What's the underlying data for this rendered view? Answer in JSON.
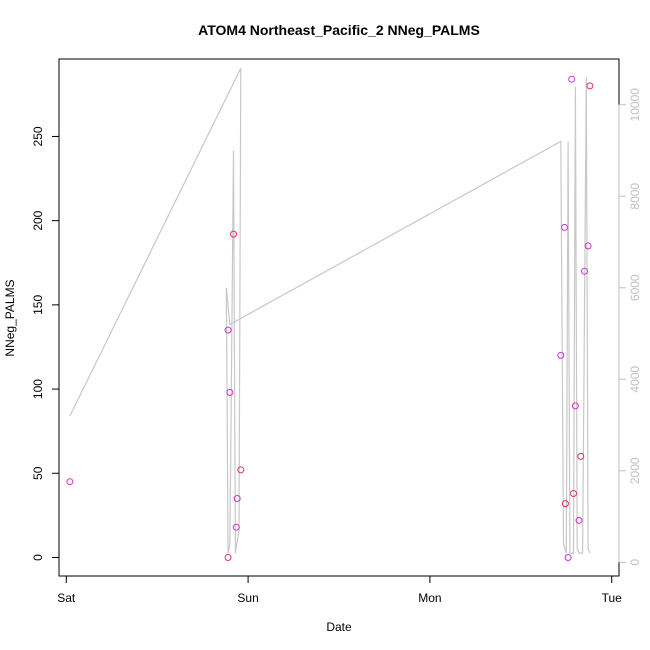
{
  "chart_data": {
    "type": "scatter",
    "title": "ATOM4 Northeast_Pacific_2 NNeg_PALMS",
    "xlabel": "Date",
    "ylabel": "NNeg_PALMS",
    "x_ticks": [
      "Sat",
      "Sun",
      "Mon",
      "Tue"
    ],
    "x_unit": "days since Sat 00:00",
    "xlim": [
      -0.04,
      3.04
    ],
    "ylim": [
      -11,
      296
    ],
    "y_ticks": [
      0,
      50,
      100,
      150,
      200,
      250
    ],
    "y2_ticks": [
      0,
      2000,
      4000,
      6000,
      8000,
      10000
    ],
    "y2lim": [
      -300,
      11000
    ],
    "colors": {
      "points": "#cc33cc",
      "points_alt": "#e0306a",
      "line": "#c8c8c8",
      "right_axis": "#c0c0c0"
    },
    "series": [
      {
        "kind": "points",
        "x": [
          0.02,
          0.89,
          0.89,
          0.9,
          0.92,
          0.935,
          0.94,
          0.96,
          2.72,
          2.74,
          2.745,
          2.76,
          2.78,
          2.79,
          2.8,
          2.82,
          2.83,
          2.85,
          2.87,
          2.88
        ],
        "y": [
          45,
          0,
          135,
          98,
          192,
          18,
          35,
          52,
          120,
          196,
          32,
          0,
          284,
          38,
          90,
          22,
          60,
          170,
          185,
          280
        ]
      },
      {
        "kind": "line",
        "axis": "right",
        "x": [
          0.02,
          0.96,
          0.95,
          0.93,
          0.92,
          0.9,
          0.89,
          0.88,
          0.9,
          2.72,
          2.735,
          2.75,
          2.76,
          2.77,
          2.79,
          2.8,
          2.81,
          2.82,
          2.84,
          2.86,
          2.87,
          2.88
        ],
        "y": [
          3200,
          10800,
          700,
          200,
          9000,
          400,
          200,
          6000,
          5200,
          9200,
          400,
          200,
          9200,
          200,
          200,
          10400,
          300,
          200,
          200,
          10600,
          300,
          200
        ]
      }
    ]
  }
}
